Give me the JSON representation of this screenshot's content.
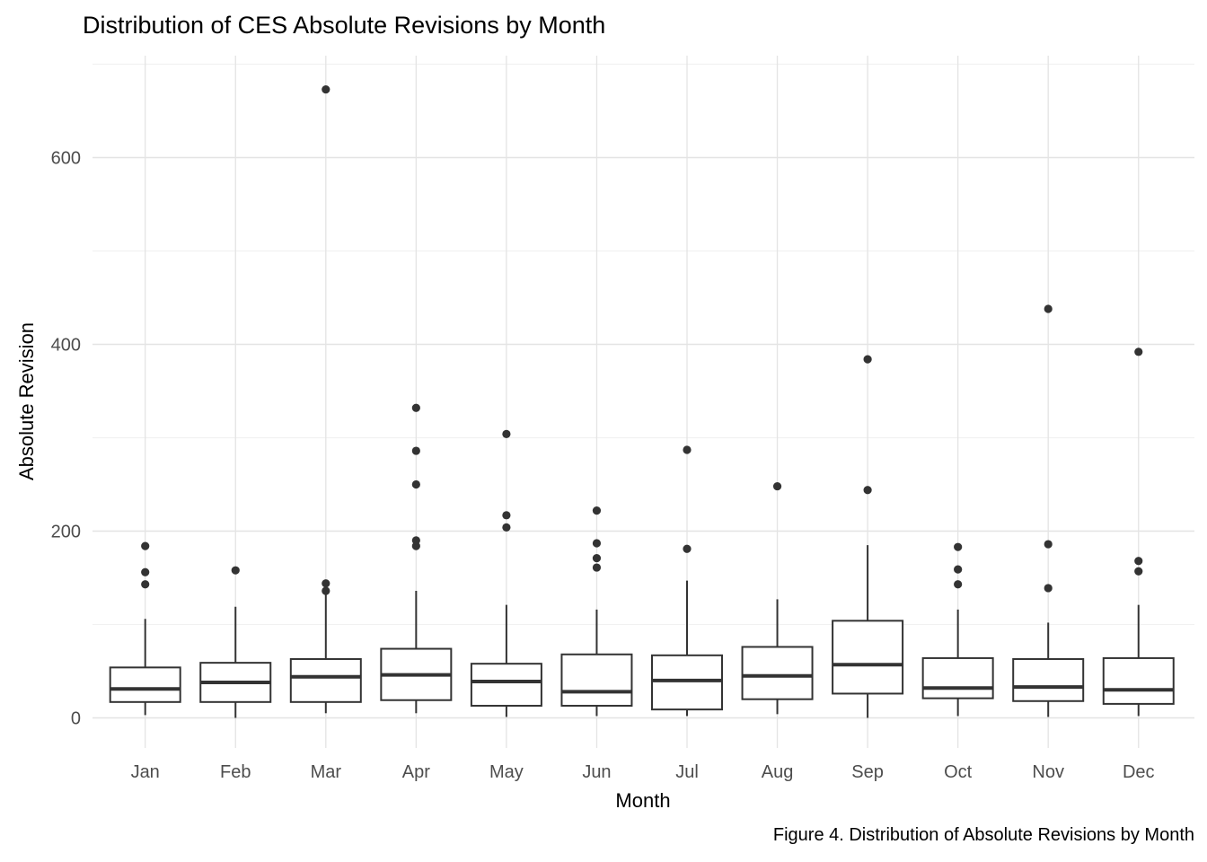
{
  "chart_data": {
    "type": "boxplot",
    "title": "Distribution of CES Absolute Revisions by Month",
    "xlabel": "Month",
    "ylabel": "Absolute Revision",
    "caption": "Figure 4. Distribution of Absolute Revisions by Month",
    "categories": [
      "Jan",
      "Feb",
      "Mar",
      "Apr",
      "May",
      "Jun",
      "Jul",
      "Aug",
      "Sep",
      "Oct",
      "Nov",
      "Dec"
    ],
    "yticks": [
      0,
      200,
      400,
      600
    ],
    "yticks_minor": [
      100,
      300,
      500,
      700
    ],
    "ylim": [
      -32,
      709
    ],
    "grid": true,
    "legend": "none",
    "series": [
      {
        "name": "Jan",
        "whisker_low": 3,
        "q1": 17,
        "median": 31,
        "q3": 54,
        "whisker_high": 106,
        "outliers": [
          143,
          156,
          184
        ]
      },
      {
        "name": "Feb",
        "whisker_low": 0,
        "q1": 17,
        "median": 38,
        "q3": 59,
        "whisker_high": 119,
        "outliers": [
          158
        ]
      },
      {
        "name": "Mar",
        "whisker_low": 5,
        "q1": 17,
        "median": 44,
        "q3": 63,
        "whisker_high": 132,
        "outliers": [
          136,
          144,
          673
        ]
      },
      {
        "name": "Apr",
        "whisker_low": 5,
        "q1": 19,
        "median": 46,
        "q3": 74,
        "whisker_high": 136,
        "outliers": [
          184,
          190,
          250,
          286,
          332
        ]
      },
      {
        "name": "May",
        "whisker_low": 1,
        "q1": 13,
        "median": 39,
        "q3": 58,
        "whisker_high": 121,
        "outliers": [
          204,
          217,
          304
        ]
      },
      {
        "name": "Jun",
        "whisker_low": 2,
        "q1": 13,
        "median": 28,
        "q3": 68,
        "whisker_high": 116,
        "outliers": [
          161,
          171,
          187,
          222
        ]
      },
      {
        "name": "Jul",
        "whisker_low": 2,
        "q1": 9,
        "median": 40,
        "q3": 67,
        "whisker_high": 147,
        "outliers": [
          181,
          287
        ]
      },
      {
        "name": "Aug",
        "whisker_low": 4,
        "q1": 20,
        "median": 45,
        "q3": 76,
        "whisker_high": 127,
        "outliers": [
          248
        ]
      },
      {
        "name": "Sep",
        "whisker_low": 0,
        "q1": 26,
        "median": 57,
        "q3": 104,
        "whisker_high": 185,
        "outliers": [
          244,
          384
        ]
      },
      {
        "name": "Oct",
        "whisker_low": 2,
        "q1": 21,
        "median": 32,
        "q3": 64,
        "whisker_high": 116,
        "outliers": [
          143,
          159,
          183
        ]
      },
      {
        "name": "Nov",
        "whisker_low": 1,
        "q1": 18,
        "median": 33,
        "q3": 63,
        "whisker_high": 102,
        "outliers": [
          139,
          186,
          438
        ]
      },
      {
        "name": "Dec",
        "whisker_low": 2,
        "q1": 15,
        "median": 30,
        "q3": 64,
        "whisker_high": 121,
        "outliers": [
          157,
          168,
          392
        ]
      }
    ],
    "colors": {
      "box_stroke": "#333333",
      "box_fill": "#ffffff",
      "outlier": "#333333",
      "grid_major": "#e4e4e4",
      "grid_minor": "#f1f1f1",
      "tick_label": "#4d4d4d",
      "text": "#000000"
    }
  }
}
